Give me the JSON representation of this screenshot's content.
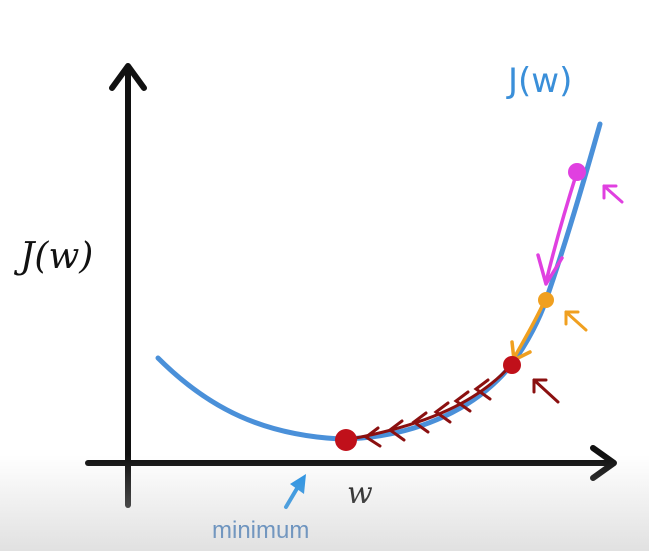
{
  "diagram": {
    "y_axis_label": "J(w)",
    "x_axis_label": "w",
    "curve_label": "J(w)",
    "minimum_label": "minimum",
    "colors": {
      "axis": "#111111",
      "curve": "#4a90d9",
      "curve_label": "#3a8fd9",
      "step_pink": "#e040e0",
      "step_orange": "#f0a020",
      "step_red": "#c0101a",
      "step_darkred": "#8b1010",
      "minimum_arrow": "#1e8fe6",
      "minimum_text": "#2e6fb8"
    }
  }
}
